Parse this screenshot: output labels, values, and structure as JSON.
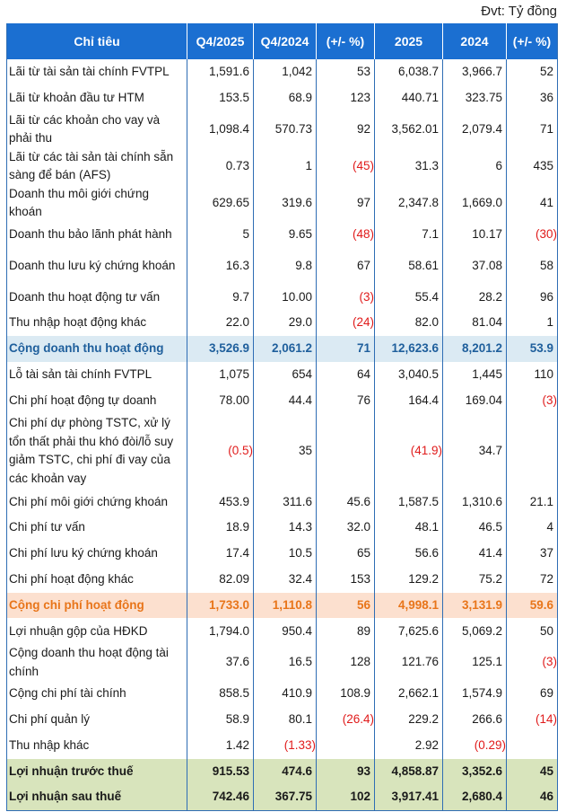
{
  "unit_label": "Đvt: Tỷ đồng",
  "headers": [
    "Chỉ tiêu",
    "Q4/2025",
    "Q4/2024",
    "(+/- %)",
    "2025",
    "2024",
    "(+/- %)"
  ],
  "colors": {
    "header_bg": "#1b6fd1",
    "negative": "#e01b1b",
    "revenue_total_bg": "#dbeaf3",
    "revenue_total_text": "#1f5f9c",
    "cost_total_bg": "#fce0cf",
    "cost_total_text": "#e8751a",
    "profit_bg": "#d8e4bc"
  },
  "rows": [
    {
      "label": "Lãi từ tài sản tài chính FVTPL",
      "values": [
        "1,591.6",
        "1,042",
        "53",
        "6,038.7",
        "3,966.7",
        "52"
      ],
      "lines": 1
    },
    {
      "label": "Lãi từ khoản đầu tư HTM",
      "values": [
        "153.5",
        "68.9",
        "123",
        "440.71",
        "323.75",
        "36"
      ],
      "lines": 1
    },
    {
      "label": "Lãi từ các khoản cho vay và phải thu",
      "values": [
        "1,098.4",
        "570.73",
        "92",
        "3,562.01",
        "2,079.4",
        "71"
      ],
      "lines": 2
    },
    {
      "label": "Lãi từ các tài sản tài chính sẵn sàng để bán (AFS)",
      "values": [
        "0.73",
        "1",
        "(45)",
        "31.3",
        "6",
        "435"
      ],
      "lines": 2
    },
    {
      "label": "Doanh thu môi giới chứng khoán",
      "values": [
        "629.65",
        "319.6",
        "97",
        "2,347.8",
        "1,669.0",
        "41"
      ],
      "lines": 2
    },
    {
      "label": "Doanh thu bảo lãnh phát hành",
      "values": [
        "5",
        "9.65",
        "(48)",
        "7.1",
        "10.17",
        "(30)"
      ],
      "lines": 1
    },
    {
      "label": "Doanh thu lưu ký chứng khoán",
      "values": [
        "16.3",
        "9.8",
        "67",
        "58.61",
        "37.08",
        "58"
      ],
      "lines": 2
    },
    {
      "label": "Doanh thu hoạt động tư vấn",
      "values": [
        "9.7",
        "10.00",
        "(3)",
        "55.4",
        "28.2",
        "96"
      ],
      "lines": 1
    },
    {
      "label": "Thu nhập hoạt động khác",
      "values": [
        "22.0",
        "29.0",
        "(24)",
        "82.0",
        "81.04",
        "1"
      ],
      "lines": 1
    },
    {
      "label": "Cộng doanh thu hoạt động",
      "values": [
        "3,526.9",
        "2,061.2",
        "71",
        "12,623.6",
        "8,201.2",
        "53.9"
      ],
      "lines": 1,
      "style": "rev"
    },
    {
      "label": "Lỗ tài sản tài chính FVTPL",
      "values": [
        "1,075",
        "654",
        "64",
        "3,040.5",
        "1,445",
        "110"
      ],
      "lines": 1
    },
    {
      "label": "Chi phí hoạt động tự doanh",
      "values": [
        "78.00",
        "44.4",
        "76",
        "164.4",
        "169.04",
        "(3)"
      ],
      "lines": 1
    },
    {
      "label": "Chi phí dự phòng TSTC, xử lý tổn thất phải thu khó đòi/lỗ suy giảm TSTC, chi phí đi vay của các khoản vay",
      "values": [
        "(0.5)",
        "35",
        "",
        "(41.9)",
        "34.7",
        ""
      ],
      "lines": 4
    },
    {
      "label": "Chi phí môi giới chứng khoán",
      "values": [
        "453.9",
        "311.6",
        "45.6",
        "1,587.5",
        "1,310.6",
        "21.1"
      ],
      "lines": 1
    },
    {
      "label": "Chi phí tư vấn",
      "values": [
        "18.9",
        "14.3",
        "32.0",
        "48.1",
        "46.5",
        "4"
      ],
      "lines": 1
    },
    {
      "label": "Chi phí lưu ký chứng khoán",
      "values": [
        "17.4",
        "10.5",
        "65",
        "56.6",
        "41.4",
        "37"
      ],
      "lines": 1
    },
    {
      "label": "Chi phí hoạt động khác",
      "values": [
        "82.09",
        "32.4",
        "153",
        "129.2",
        "75.2",
        "72"
      ],
      "lines": 1
    },
    {
      "label": "Cộng chi phí hoạt động",
      "values": [
        "1,733.0",
        "1,110.8",
        "56",
        "4,998.1",
        "3,131.9",
        "59.6"
      ],
      "lines": 1,
      "style": "cost"
    },
    {
      "label": "Lợi nhuận gộp của HĐKD",
      "values": [
        "1,794.0",
        "950.4",
        "89",
        "7,625.6",
        "5,069.2",
        "50"
      ],
      "lines": 1
    },
    {
      "label": "Cộng doanh thu hoạt động tài chính",
      "values": [
        "37.6",
        "16.5",
        "128",
        "121.76",
        "125.1",
        "(3)"
      ],
      "lines": 2
    },
    {
      "label": "Cộng chi phí tài chính",
      "values": [
        "858.5",
        "410.9",
        "108.9",
        "2,662.1",
        "1,574.9",
        "69"
      ],
      "lines": 1
    },
    {
      "label": "Chi phí quản lý",
      "values": [
        "58.9",
        "80.1",
        "(26.4)",
        "229.2",
        "266.6",
        "(14)"
      ],
      "lines": 1
    },
    {
      "label": "Thu nhập khác",
      "values": [
        "1.42",
        "(1.33)",
        "",
        "2.92",
        "(0.29)",
        ""
      ],
      "lines": 1
    },
    {
      "label": "Lợi nhuận trước thuế",
      "values": [
        "915.53",
        "474.6",
        "93",
        "4,858.87",
        "3,352.6",
        "45"
      ],
      "lines": 1,
      "style": "profit"
    },
    {
      "label": "Lợi nhuận sau thuế",
      "values": [
        "742.46",
        "367.75",
        "102",
        "3,917.41",
        "2,680.4",
        "46"
      ],
      "lines": 1,
      "style": "profit"
    }
  ]
}
